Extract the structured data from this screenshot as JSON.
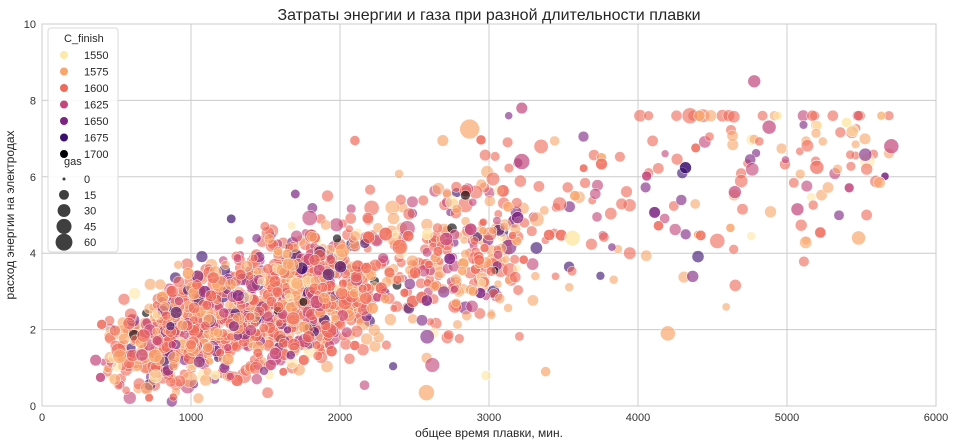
{
  "chart_data": {
    "type": "scatter",
    "title": "Затраты энергии и газа при разной длительности плавки",
    "xlabel": "общее время плавки, мин.",
    "ylabel": "расход энергии на электродах",
    "xlim": [
      0,
      6000
    ],
    "ylim": [
      0,
      10
    ],
    "xticks": [
      "0",
      "1000",
      "2000",
      "3000",
      "4000",
      "5000",
      "6000"
    ],
    "yticks": [
      "0",
      "2",
      "4",
      "6",
      "8",
      "10"
    ],
    "grid": true,
    "legend_position": "top-left",
    "hue": {
      "title": "C_finish",
      "entries": [
        {
          "label": "1550",
          "color": "#fde9a9"
        },
        {
          "label": "1575",
          "color": "#f9a66c"
        },
        {
          "label": "1600",
          "color": "#ef6a5a"
        },
        {
          "label": "1625",
          "color": "#c3457a"
        },
        {
          "label": "1650",
          "color": "#7d2382"
        },
        {
          "label": "1675",
          "color": "#3b0f70"
        },
        {
          "label": "1700",
          "color": "#000004"
        }
      ]
    },
    "size": {
      "title": "gas",
      "entries": [
        {
          "label": "0",
          "value": 0
        },
        {
          "label": "15",
          "value": 15
        },
        {
          "label": "30",
          "value": 30
        },
        {
          "label": "45",
          "value": 45
        },
        {
          "label": "60",
          "value": 60
        }
      ]
    },
    "highlight_points": [
      {
        "x": 2870,
        "y": 7.25,
        "gas": 60,
        "hue": "1575"
      },
      {
        "x": 4780,
        "y": 8.5,
        "gas": 20,
        "hue": "1625"
      },
      {
        "x": 3220,
        "y": 7.8,
        "gas": 15,
        "hue": "1625"
      },
      {
        "x": 4880,
        "y": 7.3,
        "gas": 25,
        "hue": "1625"
      },
      {
        "x": 3220,
        "y": 6.4,
        "gas": 35,
        "hue": "1625"
      },
      {
        "x": 5700,
        "y": 6.8,
        "gas": 30,
        "hue": "1625"
      },
      {
        "x": 4200,
        "y": 1.9,
        "gas": 30,
        "hue": "1575"
      },
      {
        "x": 2580,
        "y": 0.35,
        "gas": 35,
        "hue": "1575"
      },
      {
        "x": 5620,
        "y": 5.85,
        "gas": 15,
        "hue": "1575"
      },
      {
        "x": 5200,
        "y": 6.25,
        "gas": 25,
        "hue": "1600"
      },
      {
        "x": 5480,
        "y": 4.4,
        "gas": 25,
        "hue": "1575"
      },
      {
        "x": 5070,
        "y": 5.15,
        "gas": 20,
        "hue": "1625"
      },
      {
        "x": 4650,
        "y": 5.6,
        "gas": 20,
        "hue": "1625"
      },
      {
        "x": 2690,
        "y": 6.95,
        "gas": 15,
        "hue": "1575"
      },
      {
        "x": 2100,
        "y": 6.95,
        "gas": 10,
        "hue": "1600"
      },
      {
        "x": 1700,
        "y": 5.55,
        "gas": 8,
        "hue": "1650"
      },
      {
        "x": 1270,
        "y": 4.9,
        "gas": 8,
        "hue": "1675"
      },
      {
        "x": 360,
        "y": 1.2,
        "gas": 15,
        "hue": "1625"
      },
      {
        "x": 3380,
        "y": 0.9,
        "gas": 10,
        "hue": "1575"
      },
      {
        "x": 2980,
        "y": 0.8,
        "gas": 10,
        "hue": "1550"
      }
    ],
    "cloud_notes": "dense cloud of several thousand points, x≈300–5700, y≈0–7.8"
  }
}
